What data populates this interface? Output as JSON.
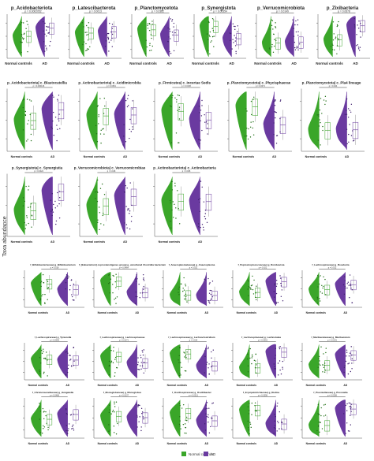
{
  "figure": {
    "y_axis_label": "Taxa abundance",
    "legend": [
      {
        "name": "Normal controls",
        "color": "#3aa629"
      },
      {
        "name": "AD",
        "color": "#6a3aa0"
      }
    ]
  },
  "chart_data": [
    {
      "type": "violin",
      "title": "p_Acidobacteriota",
      "pvalue": "p = 0.0002052",
      "categories": [
        "Normal controls",
        "AD"
      ]
    },
    {
      "type": "violin",
      "title": "p_Latescibacterota",
      "pvalue": "p = 0.0013",
      "categories": [
        "Normal controls",
        "AD"
      ]
    },
    {
      "type": "violin",
      "title": "p_Planctomycetota",
      "pvalue": "p = 0.0362",
      "categories": [
        "Normal controls",
        "AD"
      ]
    },
    {
      "type": "violin",
      "title": "p_Synergistota",
      "pvalue": "p = 0.00354",
      "categories": [
        "Normal controls",
        "AD"
      ]
    },
    {
      "type": "violin",
      "title": "p_Verrucomicrobiota",
      "pvalue": "p = 0.0149",
      "categories": [
        "Normal controls",
        "AD"
      ]
    },
    {
      "type": "violin",
      "title": "p_Zixibacteria",
      "pvalue": "p = 0.0678",
      "categories": [
        "Normal controls",
        "AD"
      ]
    },
    {
      "type": "violin",
      "title": "p_Acidobacteriota| c_Blastocatellia",
      "pvalue": "p = 0.000134",
      "categories": [
        "Normal controls",
        "AD"
      ]
    },
    {
      "type": "violin",
      "title": "p_Actinobacteriota| c_Acidimicrobiia",
      "pvalue": "p = 0.0361",
      "categories": [
        "Normal controls",
        "AD"
      ]
    },
    {
      "type": "violin",
      "title": "p_Firmicutes| c_Incertae Sedis",
      "pvalue": "p = 0.0136",
      "categories": [
        "Normal controls",
        "AD"
      ]
    },
    {
      "type": "violin",
      "title": "p_Planctomycetota| c_Phycisphaerae",
      "pvalue": "p = 0.0071",
      "categories": [
        "Normal controls",
        "AD"
      ]
    },
    {
      "type": "violin",
      "title": "p_Planctomycetota| c_Pla4 lineage",
      "pvalue": "p = 0.024",
      "categories": [
        "Normal controls",
        "AD"
      ]
    },
    {
      "type": "violin",
      "title": "p_Synergistota| c_Synergistia",
      "pvalue": "p = 0.0024",
      "categories": [
        "Normal controls",
        "AD"
      ]
    },
    {
      "type": "violin",
      "title": "p_Verrucomicrobiota| c_Verrucomicrobiae",
      "pvalue": "p = 0.018",
      "categories": [
        "Normal controls",
        "AD"
      ]
    },
    {
      "type": "violin",
      "title": "p_Actinobacteriota| c_Actinobacteria",
      "pvalue": "p = 0.036",
      "categories": [
        "Normal controls",
        "AD"
      ]
    },
    {
      "type": "violin",
      "title": "f_Bifidobacteriaceae| g_Bifidobacterium",
      "pvalue": "p = 0.018",
      "categories": [
        "Normal controls",
        "AD"
      ]
    },
    {
      "type": "violin",
      "title": "f_[Eubacterium] coprostanoligenes group| g_uncultured Clostridia bacterium",
      "pvalue": "p = 0.0464",
      "categories": [
        "Normal controls",
        "AD"
      ]
    },
    {
      "type": "violin",
      "title": "f_Anaeroplasmataceae| g_Anaeroplasma",
      "pvalue": "p = 0.021",
      "categories": [
        "Normal controls",
        "AD"
      ]
    },
    {
      "type": "violin",
      "title": "f_Peptostreptococcaceae| g_Romboutsia",
      "pvalue": "p = 0.022",
      "categories": [
        "Normal controls",
        "AD"
      ]
    },
    {
      "type": "violin",
      "title": "f_Lachnospiraceae| g_Roseburia",
      "pvalue": "p = 0.012",
      "categories": [
        "Normal controls",
        "AD"
      ]
    },
    {
      "type": "violin",
      "title": "f_Lachnospiraceae| g_Tyzzerella",
      "pvalue": "p = 0.0059",
      "categories": [
        "Normal controls",
        "AD"
      ]
    },
    {
      "type": "violin",
      "title": "f_Lachnospiraceae| g_Lachnospiraceae",
      "pvalue": "p = 0.0171",
      "categories": [
        "Normal controls",
        "AD"
      ]
    },
    {
      "type": "violin",
      "title": "f_Lachnospiraceae| g_Lachnoclostridium",
      "pvalue": "p = 0.014",
      "categories": [
        "Normal controls",
        "AD"
      ]
    },
    {
      "type": "violin",
      "title": "f_Lachnospiraceae| g_Lachnotalea",
      "pvalue": "p = 0.0053",
      "categories": [
        "Normal controls",
        "AD"
      ]
    },
    {
      "type": "violin",
      "title": "f_Muribaculaceae| g_Muribaculum",
      "pvalue": "p = 0.0141",
      "categories": [
        "Normal controls",
        "AD"
      ]
    },
    {
      "type": "violin",
      "title": "f_Christensenellaceae| g_Hungatella",
      "pvalue": "p = 0.0468",
      "categories": [
        "Normal controls",
        "AD"
      ]
    },
    {
      "type": "violin",
      "title": "f_Monoglobaceae| g_Monoglobus",
      "pvalue": "p = 0.0137",
      "categories": [
        "Normal controls",
        "AD"
      ]
    },
    {
      "type": "violin",
      "title": "f_Oscillospiraceae| g_Oscillibacter",
      "pvalue": "p = 0.0311",
      "categories": [
        "Normal controls",
        "AD"
      ]
    },
    {
      "type": "violin",
      "title": "f_Erysipelotrichaceae| g_Dielma",
      "pvalue": "p = 0.0358",
      "categories": [
        "Normal controls",
        "AD"
      ]
    },
    {
      "type": "violin",
      "title": "f_Prevotellaceae| g_Prevotella",
      "pvalue": "p = 0.0208",
      "categories": [
        "Normal controls",
        "AD"
      ]
    }
  ]
}
